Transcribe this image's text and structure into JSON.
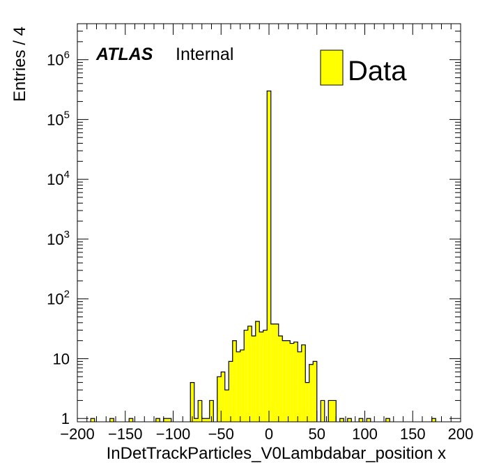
{
  "chart_data": {
    "type": "bar",
    "xlabel": "InDetTrackParticles_V0Lambdabar_position x",
    "ylabel": "Entries / 4",
    "xlim": [
      -200,
      200
    ],
    "ylim": [
      0.88,
      4000000
    ],
    "yscale": "log",
    "bin_width": 4,
    "x_ticks": [
      -200,
      -150,
      -100,
      -50,
      0,
      50,
      100,
      150,
      200
    ],
    "x_tick_labels": [
      "−200",
      "−150",
      "−100",
      "−50",
      "0",
      "50",
      "100",
      "150",
      "200"
    ],
    "y_ticks": [
      {
        "value": 1,
        "base": "1",
        "exp": ""
      },
      {
        "value": 10,
        "base": "10",
        "exp": ""
      },
      {
        "value": 100,
        "base": "10",
        "exp": "2"
      },
      {
        "value": 1000,
        "base": "10",
        "exp": "3"
      },
      {
        "value": 10000,
        "base": "10",
        "exp": "4"
      },
      {
        "value": 100000,
        "base": "10",
        "exp": "5"
      },
      {
        "value": 1000000,
        "base": "10",
        "exp": "6"
      }
    ],
    "series": [
      {
        "name": "Data",
        "color": "#ffff00",
        "bins": [
          {
            "x": -184,
            "y": 1
          },
          {
            "x": -164,
            "y": 1
          },
          {
            "x": -144,
            "y": 1
          },
          {
            "x": -116,
            "y": 1
          },
          {
            "x": -108,
            "y": 1
          },
          {
            "x": -104,
            "y": 1
          },
          {
            "x": -80,
            "y": 4
          },
          {
            "x": -76,
            "y": 1
          },
          {
            "x": -72,
            "y": 2
          },
          {
            "x": -68,
            "y": 1
          },
          {
            "x": -64,
            "y": 1
          },
          {
            "x": -60,
            "y": 2
          },
          {
            "x": -52,
            "y": 5
          },
          {
            "x": -48,
            "y": 6
          },
          {
            "x": -44,
            "y": 3
          },
          {
            "x": -40,
            "y": 9
          },
          {
            "x": -36,
            "y": 20
          },
          {
            "x": -32,
            "y": 13
          },
          {
            "x": -28,
            "y": 14
          },
          {
            "x": -24,
            "y": 30
          },
          {
            "x": -20,
            "y": 35
          },
          {
            "x": -16,
            "y": 24
          },
          {
            "x": -12,
            "y": 42
          },
          {
            "x": -8,
            "y": 28
          },
          {
            "x": -4,
            "y": 30
          },
          {
            "x": 0,
            "y": 300000
          },
          {
            "x": 4,
            "y": 38
          },
          {
            "x": 8,
            "y": 38
          },
          {
            "x": 12,
            "y": 24
          },
          {
            "x": 16,
            "y": 20
          },
          {
            "x": 20,
            "y": 20
          },
          {
            "x": 24,
            "y": 18
          },
          {
            "x": 28,
            "y": 19
          },
          {
            "x": 32,
            "y": 13
          },
          {
            "x": 36,
            "y": 17
          },
          {
            "x": 40,
            "y": 4
          },
          {
            "x": 44,
            "y": 8
          },
          {
            "x": 48,
            "y": 9
          },
          {
            "x": 56,
            "y": 2
          },
          {
            "x": 64,
            "y": 2
          },
          {
            "x": 68,
            "y": 2
          },
          {
            "x": 76,
            "y": 1
          },
          {
            "x": 84,
            "y": 1
          },
          {
            "x": 96,
            "y": 1
          },
          {
            "x": 104,
            "y": 1
          },
          {
            "x": 124,
            "y": 1
          },
          {
            "x": 172,
            "y": 1
          }
        ]
      }
    ],
    "legend": {
      "position": "top-right",
      "entries": [
        "Data"
      ]
    },
    "atlas_label": {
      "bold": "ATLAS",
      "text": "Internal"
    },
    "grid": false
  }
}
